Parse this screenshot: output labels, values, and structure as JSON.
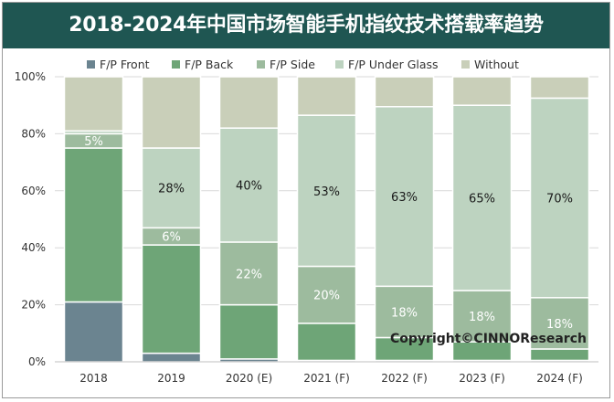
{
  "chart_data": {
    "type": "bar",
    "stacked": true,
    "title": "2018-2024年中国市场智能手机指纹技术搭载率趋势",
    "categories": [
      "2018",
      "2019",
      "2020 (E)",
      "2021 (F)",
      "2022 (F)",
      "2023 (F)",
      "2024 (F)"
    ],
    "series": [
      {
        "name": "F/P Front",
        "color": "#6b8490",
        "values": [
          21,
          3,
          1,
          0.5,
          0.5,
          0.5,
          0.5
        ]
      },
      {
        "name": "F/P Back",
        "color": "#6ea577",
        "values": [
          54,
          38,
          19,
          13,
          8,
          6.5,
          4
        ]
      },
      {
        "name": "F/P Side",
        "color": "#9dbb9e",
        "values": [
          5,
          6,
          22,
          20,
          18,
          18,
          18
        ]
      },
      {
        "name": "F/P Under Glass",
        "color": "#bdd3c0",
        "values": [
          1,
          28,
          40,
          53,
          63,
          65,
          70
        ]
      },
      {
        "name": "Without",
        "color": "#c9cfb9",
        "values": [
          19,
          25,
          18,
          13.5,
          10.5,
          10,
          7.5
        ]
      }
    ],
    "data_labels": [
      {
        "category_index": 0,
        "series_index": 2,
        "text": "5%"
      },
      {
        "category_index": 1,
        "series_index": 2,
        "text": "6%"
      },
      {
        "category_index": 1,
        "series_index": 3,
        "text": "28%"
      },
      {
        "category_index": 2,
        "series_index": 2,
        "text": "22%"
      },
      {
        "category_index": 2,
        "series_index": 3,
        "text": "40%"
      },
      {
        "category_index": 3,
        "series_index": 2,
        "text": "20%"
      },
      {
        "category_index": 3,
        "series_index": 3,
        "text": "53%"
      },
      {
        "category_index": 4,
        "series_index": 2,
        "text": "18%"
      },
      {
        "category_index": 4,
        "series_index": 3,
        "text": "63%"
      },
      {
        "category_index": 5,
        "series_index": 2,
        "text": "18%"
      },
      {
        "category_index": 5,
        "series_index": 3,
        "text": "65%"
      },
      {
        "category_index": 6,
        "series_index": 2,
        "text": "18%"
      },
      {
        "category_index": 6,
        "series_index": 3,
        "text": "70%"
      }
    ],
    "y_ticks": [
      "0%",
      "20%",
      "40%",
      "60%",
      "80%",
      "100%"
    ],
    "ylim": [
      0,
      100
    ],
    "legend_position": "top",
    "watermark": "Copyright©CINNOResearch",
    "xlabel": "",
    "ylabel": ""
  }
}
